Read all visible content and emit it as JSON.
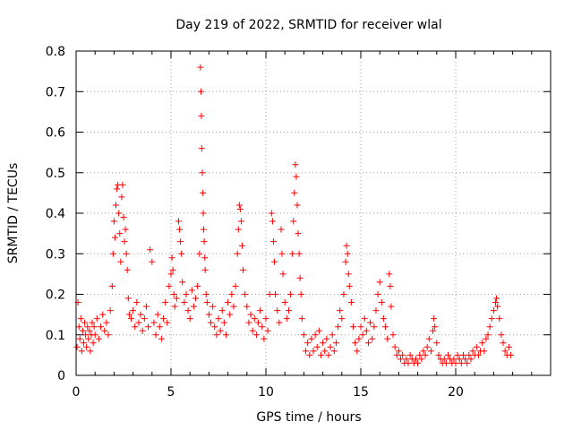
{
  "chart_data": {
    "type": "scatter",
    "title": "Day 219 of 2022, SRMTID for receiver wlal",
    "xlabel": "GPS time / hours",
    "ylabel": "SRMTID / TECUs",
    "xlim": [
      0,
      25
    ],
    "ylim": [
      0,
      0.8
    ],
    "xticks": [
      0,
      5,
      10,
      15,
      20
    ],
    "xtick_labels": [
      "0",
      "5",
      "10",
      "15",
      "20"
    ],
    "yticks": [
      0,
      0.1,
      0.2,
      0.3,
      0.4,
      0.5,
      0.6,
      0.7,
      0.8
    ],
    "ytick_labels": [
      "0",
      "0.1",
      "0.2",
      "0.3",
      "0.4",
      "0.5",
      "0.6",
      "0.7",
      "0.8"
    ],
    "grid": true,
    "marker": "+",
    "color": "#ff0000",
    "series": [
      {
        "name": "SRMTID",
        "points": [
          [
            0.05,
            0.07
          ],
          [
            0.1,
            0.18
          ],
          [
            0.15,
            0.12
          ],
          [
            0.2,
            0.09
          ],
          [
            0.25,
            0.14
          ],
          [
            0.3,
            0.06
          ],
          [
            0.35,
            0.11
          ],
          [
            0.4,
            0.08
          ],
          [
            0.45,
            0.13
          ],
          [
            0.5,
            0.1
          ],
          [
            0.55,
            0.07
          ],
          [
            0.6,
            0.12
          ],
          [
            0.65,
            0.09
          ],
          [
            0.7,
            0.11
          ],
          [
            0.75,
            0.06
          ],
          [
            0.8,
            0.1
          ],
          [
            0.85,
            0.13
          ],
          [
            0.9,
            0.08
          ],
          [
            0.95,
            0.12
          ],
          [
            1.0,
            0.1
          ],
          [
            1.1,
            0.14
          ],
          [
            1.2,
            0.09
          ],
          [
            1.3,
            0.12
          ],
          [
            1.4,
            0.15
          ],
          [
            1.5,
            0.11
          ],
          [
            1.6,
            0.13
          ],
          [
            1.7,
            0.1
          ],
          [
            1.8,
            0.16
          ],
          [
            1.9,
            0.22
          ],
          [
            1.95,
            0.3
          ],
          [
            2.0,
            0.38
          ],
          [
            2.05,
            0.34
          ],
          [
            2.1,
            0.42
          ],
          [
            2.15,
            0.46
          ],
          [
            2.2,
            0.47
          ],
          [
            2.25,
            0.4
          ],
          [
            2.3,
            0.35
          ],
          [
            2.35,
            0.28
          ],
          [
            2.4,
            0.44
          ],
          [
            2.45,
            0.47
          ],
          [
            2.5,
            0.39
          ],
          [
            2.55,
            0.33
          ],
          [
            2.6,
            0.36
          ],
          [
            2.65,
            0.3
          ],
          [
            2.7,
            0.26
          ],
          [
            2.75,
            0.19
          ],
          [
            2.8,
            0.15
          ],
          [
            2.9,
            0.14
          ],
          [
            3.0,
            0.16
          ],
          [
            3.1,
            0.12
          ],
          [
            3.2,
            0.18
          ],
          [
            3.3,
            0.13
          ],
          [
            3.4,
            0.15
          ],
          [
            3.5,
            0.11
          ],
          [
            3.6,
            0.14
          ],
          [
            3.7,
            0.17
          ],
          [
            3.8,
            0.12
          ],
          [
            3.9,
            0.31
          ],
          [
            4.0,
            0.28
          ],
          [
            4.1,
            0.13
          ],
          [
            4.2,
            0.1
          ],
          [
            4.3,
            0.15
          ],
          [
            4.4,
            0.12
          ],
          [
            4.5,
            0.09
          ],
          [
            4.6,
            0.14
          ],
          [
            4.7,
            0.18
          ],
          [
            4.8,
            0.13
          ],
          [
            4.9,
            0.22
          ],
          [
            5.0,
            0.25
          ],
          [
            5.05,
            0.29
          ],
          [
            5.1,
            0.26
          ],
          [
            5.15,
            0.2
          ],
          [
            5.2,
            0.17
          ],
          [
            5.3,
            0.19
          ],
          [
            5.4,
            0.38
          ],
          [
            5.45,
            0.36
          ],
          [
            5.5,
            0.33
          ],
          [
            5.55,
            0.3
          ],
          [
            5.6,
            0.23
          ],
          [
            5.7,
            0.18
          ],
          [
            5.8,
            0.2
          ],
          [
            5.9,
            0.16
          ],
          [
            6.0,
            0.14
          ],
          [
            6.1,
            0.21
          ],
          [
            6.2,
            0.17
          ],
          [
            6.3,
            0.19
          ],
          [
            6.4,
            0.22
          ],
          [
            6.5,
            0.3
          ],
          [
            6.55,
            0.76
          ],
          [
            6.58,
            0.7
          ],
          [
            6.6,
            0.64
          ],
          [
            6.62,
            0.56
          ],
          [
            6.65,
            0.5
          ],
          [
            6.68,
            0.45
          ],
          [
            6.7,
            0.4
          ],
          [
            6.72,
            0.36
          ],
          [
            6.75,
            0.33
          ],
          [
            6.78,
            0.29
          ],
          [
            6.8,
            0.26
          ],
          [
            6.85,
            0.2
          ],
          [
            6.9,
            0.18
          ],
          [
            7.0,
            0.15
          ],
          [
            7.1,
            0.13
          ],
          [
            7.2,
            0.17
          ],
          [
            7.3,
            0.12
          ],
          [
            7.4,
            0.1
          ],
          [
            7.5,
            0.14
          ],
          [
            7.6,
            0.11
          ],
          [
            7.7,
            0.16
          ],
          [
            7.8,
            0.13
          ],
          [
            7.9,
            0.1
          ],
          [
            8.0,
            0.18
          ],
          [
            8.1,
            0.15
          ],
          [
            8.2,
            0.2
          ],
          [
            8.3,
            0.17
          ],
          [
            8.4,
            0.22
          ],
          [
            8.5,
            0.3
          ],
          [
            8.55,
            0.36
          ],
          [
            8.6,
            0.42
          ],
          [
            8.65,
            0.41
          ],
          [
            8.7,
            0.38
          ],
          [
            8.75,
            0.32
          ],
          [
            8.8,
            0.26
          ],
          [
            8.9,
            0.2
          ],
          [
            9.0,
            0.17
          ],
          [
            9.1,
            0.13
          ],
          [
            9.2,
            0.15
          ],
          [
            9.3,
            0.11
          ],
          [
            9.4,
            0.14
          ],
          [
            9.5,
            0.1
          ],
          [
            9.6,
            0.13
          ],
          [
            9.7,
            0.16
          ],
          [
            9.8,
            0.12
          ],
          [
            9.9,
            0.09
          ],
          [
            10.0,
            0.14
          ],
          [
            10.1,
            0.11
          ],
          [
            10.2,
            0.2
          ],
          [
            10.3,
            0.4
          ],
          [
            10.35,
            0.38
          ],
          [
            10.4,
            0.33
          ],
          [
            10.45,
            0.28
          ],
          [
            10.5,
            0.2
          ],
          [
            10.6,
            0.16
          ],
          [
            10.7,
            0.13
          ],
          [
            10.8,
            0.36
          ],
          [
            10.85,
            0.3
          ],
          [
            10.9,
            0.25
          ],
          [
            11.0,
            0.18
          ],
          [
            11.1,
            0.14
          ],
          [
            11.2,
            0.16
          ],
          [
            11.3,
            0.2
          ],
          [
            11.4,
            0.3
          ],
          [
            11.45,
            0.38
          ],
          [
            11.5,
            0.45
          ],
          [
            11.55,
            0.52
          ],
          [
            11.6,
            0.49
          ],
          [
            11.65,
            0.42
          ],
          [
            11.7,
            0.35
          ],
          [
            11.75,
            0.3
          ],
          [
            11.8,
            0.24
          ],
          [
            11.85,
            0.2
          ],
          [
            11.9,
            0.14
          ],
          [
            12.0,
            0.1
          ],
          [
            12.1,
            0.06
          ],
          [
            12.2,
            0.08
          ],
          [
            12.3,
            0.05
          ],
          [
            12.4,
            0.09
          ],
          [
            12.5,
            0.06
          ],
          [
            12.6,
            0.1
          ],
          [
            12.7,
            0.07
          ],
          [
            12.8,
            0.11
          ],
          [
            12.9,
            0.05
          ],
          [
            13.0,
            0.08
          ],
          [
            13.1,
            0.06
          ],
          [
            13.2,
            0.09
          ],
          [
            13.3,
            0.05
          ],
          [
            13.4,
            0.07
          ],
          [
            13.5,
            0.1
          ],
          [
            13.6,
            0.06
          ],
          [
            13.7,
            0.08
          ],
          [
            13.8,
            0.12
          ],
          [
            13.9,
            0.16
          ],
          [
            14.0,
            0.14
          ],
          [
            14.1,
            0.2
          ],
          [
            14.2,
            0.28
          ],
          [
            14.25,
            0.32
          ],
          [
            14.3,
            0.3
          ],
          [
            14.35,
            0.25
          ],
          [
            14.4,
            0.22
          ],
          [
            14.5,
            0.18
          ],
          [
            14.6,
            0.12
          ],
          [
            14.7,
            0.08
          ],
          [
            14.8,
            0.06
          ],
          [
            14.9,
            0.09
          ],
          [
            15.0,
            0.12
          ],
          [
            15.1,
            0.1
          ],
          [
            15.2,
            0.14
          ],
          [
            15.3,
            0.11
          ],
          [
            15.4,
            0.08
          ],
          [
            15.5,
            0.13
          ],
          [
            15.6,
            0.09
          ],
          [
            15.7,
            0.12
          ],
          [
            15.8,
            0.16
          ],
          [
            15.9,
            0.2
          ],
          [
            16.0,
            0.23
          ],
          [
            16.1,
            0.18
          ],
          [
            16.2,
            0.14
          ],
          [
            16.3,
            0.12
          ],
          [
            16.4,
            0.09
          ],
          [
            16.5,
            0.25
          ],
          [
            16.55,
            0.22
          ],
          [
            16.6,
            0.17
          ],
          [
            16.7,
            0.1
          ],
          [
            16.8,
            0.07
          ],
          [
            16.9,
            0.05
          ],
          [
            17.0,
            0.06
          ],
          [
            17.1,
            0.04
          ],
          [
            17.2,
            0.05
          ],
          [
            17.3,
            0.03
          ],
          [
            17.4,
            0.04
          ],
          [
            17.5,
            0.03
          ],
          [
            17.6,
            0.05
          ],
          [
            17.7,
            0.04
          ],
          [
            17.8,
            0.03
          ],
          [
            17.9,
            0.04
          ],
          [
            18.0,
            0.03
          ],
          [
            18.1,
            0.05
          ],
          [
            18.2,
            0.04
          ],
          [
            18.3,
            0.06
          ],
          [
            18.4,
            0.05
          ],
          [
            18.5,
            0.07
          ],
          [
            18.6,
            0.09
          ],
          [
            18.7,
            0.06
          ],
          [
            18.8,
            0.11
          ],
          [
            18.85,
            0.14
          ],
          [
            18.9,
            0.12
          ],
          [
            19.0,
            0.08
          ],
          [
            19.1,
            0.05
          ],
          [
            19.2,
            0.04
          ],
          [
            19.3,
            0.03
          ],
          [
            19.4,
            0.04
          ],
          [
            19.5,
            0.03
          ],
          [
            19.6,
            0.05
          ],
          [
            19.7,
            0.04
          ],
          [
            19.8,
            0.03
          ],
          [
            19.9,
            0.04
          ],
          [
            20.0,
            0.03
          ],
          [
            20.1,
            0.05
          ],
          [
            20.2,
            0.04
          ],
          [
            20.3,
            0.03
          ],
          [
            20.4,
            0.05
          ],
          [
            20.5,
            0.04
          ],
          [
            20.6,
            0.03
          ],
          [
            20.7,
            0.05
          ],
          [
            20.8,
            0.04
          ],
          [
            20.9,
            0.06
          ],
          [
            21.0,
            0.05
          ],
          [
            21.1,
            0.07
          ],
          [
            21.2,
            0.05
          ],
          [
            21.3,
            0.06
          ],
          [
            21.4,
            0.08
          ],
          [
            21.5,
            0.06
          ],
          [
            21.6,
            0.09
          ],
          [
            21.7,
            0.1
          ],
          [
            21.8,
            0.12
          ],
          [
            21.9,
            0.14
          ],
          [
            22.0,
            0.16
          ],
          [
            22.1,
            0.18
          ],
          [
            22.15,
            0.19
          ],
          [
            22.2,
            0.17
          ],
          [
            22.3,
            0.14
          ],
          [
            22.4,
            0.1
          ],
          [
            22.5,
            0.08
          ],
          [
            22.6,
            0.06
          ],
          [
            22.7,
            0.05
          ],
          [
            22.8,
            0.07
          ],
          [
            22.9,
            0.05
          ]
        ]
      }
    ]
  }
}
